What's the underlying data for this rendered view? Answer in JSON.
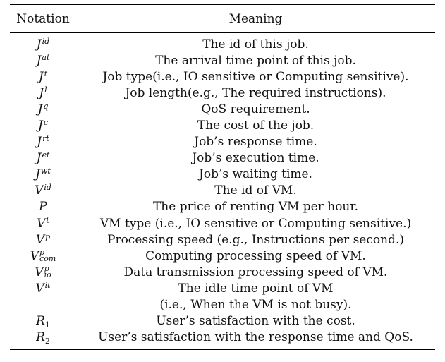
{
  "header": {
    "notation": "Notation",
    "meaning": "Meaning"
  },
  "rows": [
    {
      "base": "J",
      "sup": "id",
      "sub": "",
      "meaning": "The id of this job."
    },
    {
      "base": "J",
      "sup": "at",
      "sub": "",
      "meaning": "The arrival time point of this job."
    },
    {
      "base": "J",
      "sup": "t",
      "sub": "",
      "meaning": "Job type(i.e., IO sensitive or Computing sensitive)."
    },
    {
      "base": "J",
      "sup": "l",
      "sub": "",
      "meaning": "Job length(e.g., The required instructions)."
    },
    {
      "base": "J",
      "sup": "q",
      "sub": "",
      "meaning": "QoS requirement."
    },
    {
      "base": "J",
      "sup": "c",
      "sub": "",
      "meaning": "The cost of the job."
    },
    {
      "base": "J",
      "sup": "rt",
      "sub": "",
      "meaning": "Job’s response time."
    },
    {
      "base": "J",
      "sup": "et",
      "sub": "",
      "meaning": "Job’s execution time."
    },
    {
      "base": "J",
      "sup": "wt",
      "sub": "",
      "meaning": "Job’s waiting time."
    },
    {
      "base": "V",
      "sup": "id",
      "sub": "",
      "meaning": "The id of VM."
    },
    {
      "base": "P",
      "sup": "",
      "sub": "",
      "meaning": "The price of renting VM per hour."
    },
    {
      "base": "V",
      "sup": "t",
      "sub": "",
      "meaning": "VM type (i.e., IO sensitive or Computing sensitive.)"
    },
    {
      "base": "V",
      "sup": "p",
      "sub": "",
      "meaning": "Processing speed (e.g., Instructions per second.)"
    },
    {
      "base": "V",
      "sup": "p",
      "sub": "com",
      "meaning": "Computing processing speed of VM."
    },
    {
      "base": "V",
      "sup": "p",
      "sub": "io",
      "meaning": "Data transmission processing speed of VM."
    },
    {
      "base": "V",
      "sup": "it",
      "sub": "",
      "meaning": "The idle time point of VM"
    },
    {
      "base": "",
      "sup": "",
      "sub": "",
      "meaning": "(i.e., When the VM is not busy)."
    },
    {
      "base": "R",
      "sup": "",
      "sub": "1",
      "meaning": "User’s satisfaction with the cost."
    },
    {
      "base": "R",
      "sup": "",
      "sub": "2",
      "meaning": "User’s satisfaction with the response time and QoS."
    }
  ]
}
